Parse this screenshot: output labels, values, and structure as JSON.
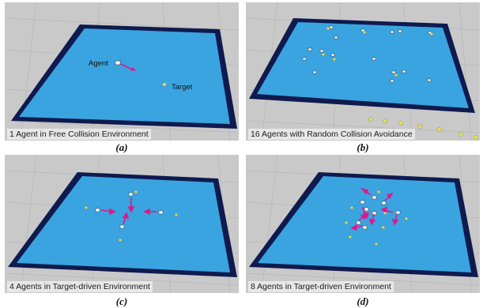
{
  "panels": [
    {
      "caption": "1 Agent in Free Collision Environment",
      "label": "(a)",
      "annotations": [
        {
          "text": "Agent"
        },
        {
          "text": "Target"
        }
      ]
    },
    {
      "caption": "16 Agents with Random Collision Avoidance",
      "label": "(b)"
    },
    {
      "caption": "4 Agents in Target-driven Environment",
      "label": "(c)"
    },
    {
      "caption": "8 Agents in Target-driven Environment",
      "label": "(d)"
    }
  ],
  "colors": {
    "background_grey": "#c9c9c9",
    "grid_line": "#b0b0b0",
    "floor_border": "#0f1a4e",
    "floor_fill": "#3aa4e0",
    "arrow": "#e0188a",
    "target": "#e8e050",
    "agent": "#ffffff"
  }
}
